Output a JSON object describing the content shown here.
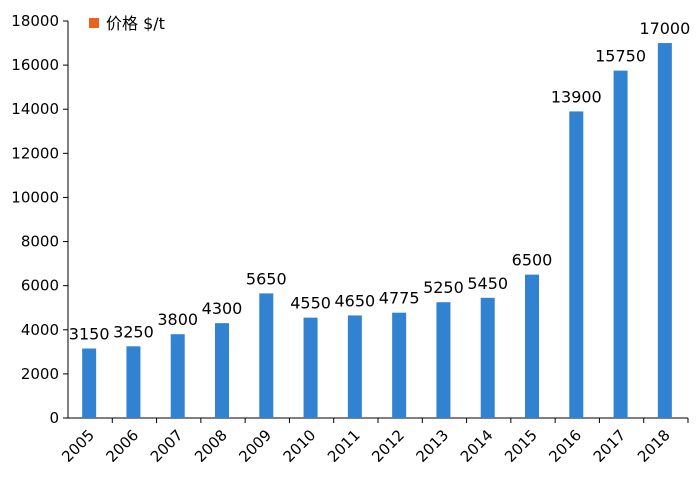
{
  "chart_data": {
    "type": "bar",
    "title": "",
    "xlabel": "",
    "ylabel": "",
    "categories": [
      "2005",
      "2006",
      "2007",
      "2008",
      "2009",
      "2010",
      "2011",
      "2012",
      "2013",
      "2014",
      "2015",
      "2016",
      "2017",
      "2018"
    ],
    "series": [
      {
        "name": "价格 $/t",
        "values": [
          3150,
          3250,
          3800,
          4300,
          5650,
          4550,
          4650,
          4775,
          5250,
          5450,
          6500,
          13900,
          15750,
          17000
        ],
        "color": "#3282d2"
      }
    ],
    "ylim": [
      0,
      18000
    ],
    "yticks": [
      0,
      2000,
      4000,
      6000,
      8000,
      10000,
      12000,
      14000,
      16000,
      18000
    ],
    "legend": {
      "position": "top-left",
      "marker_color": "#e8641e"
    },
    "grid": false
  }
}
